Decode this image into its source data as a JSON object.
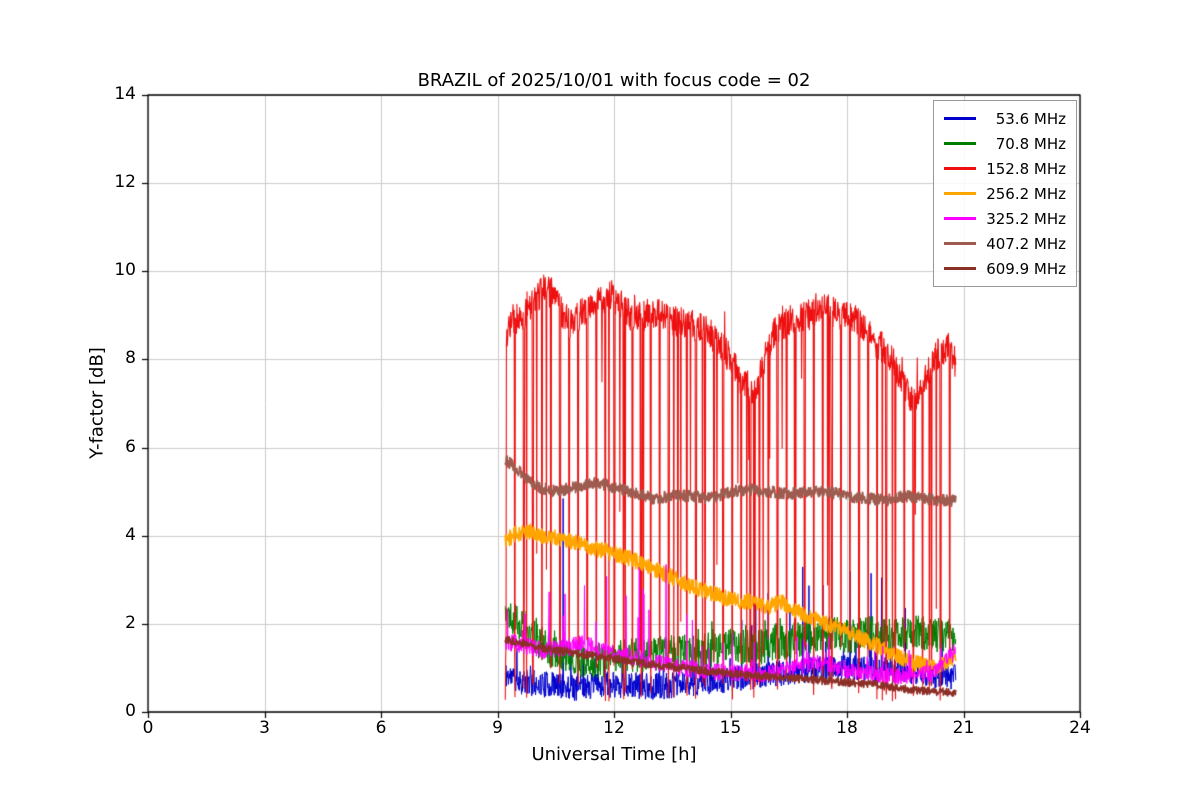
{
  "chart_data": {
    "type": "line",
    "title": "BRAZIL of 2025/10/01 with focus code = 02",
    "xlabel": "Universal Time [h]",
    "ylabel": "Y-factor [dB]",
    "xlim": [
      0,
      24
    ],
    "ylim": [
      0,
      14
    ],
    "xticks": [
      0,
      3,
      6,
      9,
      12,
      15,
      18,
      21,
      24
    ],
    "yticks": [
      0,
      2,
      4,
      6,
      8,
      10,
      12,
      14
    ],
    "grid": true,
    "grid_color": "#cccccc",
    "legend_position": "upper right",
    "t_range": [
      9.2,
      20.8
    ],
    "sample_step": 0.01,
    "series": [
      {
        "name": "53.6 MHz",
        "label": "  53.6 MHz",
        "color": "#0000cd",
        "linewidth": 1.0,
        "seed": 11,
        "noise": 0.3,
        "vmax": 13.9,
        "baseline": [
          [
            9.2,
            0.85
          ],
          [
            9.6,
            0.7
          ],
          [
            10.0,
            0.65
          ],
          [
            10.5,
            0.6
          ],
          [
            11.0,
            0.55
          ],
          [
            11.5,
            0.6
          ],
          [
            12.0,
            0.62
          ],
          [
            12.5,
            0.6
          ],
          [
            13.0,
            0.58
          ],
          [
            13.5,
            0.6
          ],
          [
            14.0,
            0.65
          ],
          [
            14.5,
            0.7
          ],
          [
            15.0,
            0.75
          ],
          [
            15.5,
            0.8
          ],
          [
            16.0,
            0.85
          ],
          [
            16.5,
            0.9
          ],
          [
            17.0,
            0.95
          ],
          [
            17.5,
            1.0
          ],
          [
            18.0,
            1.0
          ],
          [
            18.5,
            1.0
          ],
          [
            19.0,
            0.95
          ],
          [
            19.5,
            0.9
          ],
          [
            20.0,
            0.85
          ],
          [
            20.8,
            0.8
          ]
        ],
        "spikes": {
          "up_prob": 0.05,
          "up_env": [
            [
              9.2,
              1.0
            ],
            [
              10.2,
              1.2
            ],
            [
              10.4,
              4.6
            ],
            [
              10.8,
              4.6
            ],
            [
              11.0,
              1.0
            ],
            [
              15.0,
              1.2
            ],
            [
              15.8,
              2.0
            ],
            [
              16.5,
              2.4
            ],
            [
              17.5,
              2.6
            ],
            [
              18.5,
              2.6
            ],
            [
              19.5,
              2.6
            ],
            [
              20.3,
              2.3
            ],
            [
              20.8,
              2.0
            ]
          ]
        }
      },
      {
        "name": "70.8 MHz",
        "label": "  70.8 MHz",
        "color": "#007d00",
        "linewidth": 1.0,
        "seed": 22,
        "noise": 0.4,
        "vmax": 13.9,
        "baseline": [
          [
            9.2,
            2.3
          ],
          [
            9.5,
            2.1
          ],
          [
            9.8,
            1.8
          ],
          [
            10.2,
            1.5
          ],
          [
            10.6,
            1.3
          ],
          [
            11.0,
            1.2
          ],
          [
            11.5,
            1.15
          ],
          [
            12.0,
            1.2
          ],
          [
            12.5,
            1.3
          ],
          [
            13.0,
            1.3
          ],
          [
            13.5,
            1.4
          ],
          [
            14.0,
            1.35
          ],
          [
            14.5,
            1.4
          ],
          [
            15.0,
            1.5
          ],
          [
            15.5,
            1.45
          ],
          [
            16.0,
            1.5
          ],
          [
            16.5,
            1.6
          ],
          [
            17.0,
            1.7
          ],
          [
            17.5,
            1.8
          ],
          [
            18.0,
            1.7
          ],
          [
            18.5,
            1.8
          ],
          [
            19.0,
            1.7
          ],
          [
            19.5,
            1.8
          ],
          [
            20.0,
            1.8
          ],
          [
            20.4,
            1.75
          ],
          [
            20.8,
            1.6
          ]
        ],
        "spikes": {
          "up_prob": 0.03,
          "up_env": [
            [
              9.2,
              1.4
            ],
            [
              10.0,
              1.1
            ],
            [
              12.0,
              0.9
            ],
            [
              14.0,
              0.8
            ],
            [
              16.0,
              0.6
            ],
            [
              20.8,
              0.5
            ]
          ]
        }
      },
      {
        "name": "152.8 MHz",
        "label": "152.8 MHz",
        "color": "#ee1010",
        "linewidth": 1.1,
        "seed": 33,
        "noise": 0.35,
        "vmax": 10.35,
        "baseline": [
          [
            9.2,
            8.5
          ],
          [
            9.4,
            8.9
          ],
          [
            9.7,
            9.0
          ],
          [
            10.0,
            9.4
          ],
          [
            10.2,
            9.6
          ],
          [
            10.4,
            9.5
          ],
          [
            10.7,
            9.0
          ],
          [
            10.9,
            8.8
          ],
          [
            11.2,
            9.1
          ],
          [
            11.6,
            9.3
          ],
          [
            11.9,
            9.5
          ],
          [
            12.2,
            9.2
          ],
          [
            12.5,
            8.9
          ],
          [
            12.8,
            9.0
          ],
          [
            13.1,
            9.1
          ],
          [
            13.5,
            8.9
          ],
          [
            13.9,
            8.8
          ],
          [
            14.3,
            8.7
          ],
          [
            14.7,
            8.4
          ],
          [
            15.0,
            8.0
          ],
          [
            15.3,
            7.5
          ],
          [
            15.6,
            7.3
          ],
          [
            15.8,
            7.8
          ],
          [
            16.1,
            8.6
          ],
          [
            16.5,
            8.9
          ],
          [
            17.0,
            9.0
          ],
          [
            17.4,
            9.2
          ],
          [
            17.8,
            9.0
          ],
          [
            18.2,
            8.9
          ],
          [
            18.6,
            8.5
          ],
          [
            19.0,
            8.2
          ],
          [
            19.4,
            7.6
          ],
          [
            19.7,
            7.0
          ],
          [
            20.0,
            7.5
          ],
          [
            20.3,
            8.1
          ],
          [
            20.6,
            8.3
          ],
          [
            20.8,
            7.9
          ]
        ],
        "spikes": {
          "down_prob": 0.035,
          "down_floor": 0.25,
          "up_prob": 0.012,
          "up_env": [
            [
              9.2,
              0.9
            ],
            [
              20.8,
              0.9
            ]
          ],
          "period": 0.2333,
          "period_width": 0.022
        }
      },
      {
        "name": "256.2 MHz",
        "label": "256.2 MHz",
        "color": "#ffa500",
        "linewidth": 1.6,
        "seed": 44,
        "noise": 0.18,
        "vmax": 13.9,
        "baseline": [
          [
            9.2,
            3.9
          ],
          [
            9.5,
            4.05
          ],
          [
            9.8,
            4.1
          ],
          [
            10.1,
            4.0
          ],
          [
            10.5,
            3.95
          ],
          [
            11.0,
            3.85
          ],
          [
            11.5,
            3.7
          ],
          [
            12.0,
            3.6
          ],
          [
            12.5,
            3.45
          ],
          [
            13.0,
            3.25
          ],
          [
            13.5,
            3.05
          ],
          [
            14.0,
            2.85
          ],
          [
            14.5,
            2.7
          ],
          [
            15.0,
            2.55
          ],
          [
            15.5,
            2.5
          ],
          [
            16.0,
            2.4
          ],
          [
            16.3,
            2.5
          ],
          [
            16.8,
            2.25
          ],
          [
            17.3,
            2.05
          ],
          [
            17.8,
            1.9
          ],
          [
            18.3,
            1.7
          ],
          [
            18.8,
            1.5
          ],
          [
            19.3,
            1.25
          ],
          [
            19.8,
            1.1
          ],
          [
            20.3,
            1.0
          ],
          [
            20.6,
            1.15
          ],
          [
            20.8,
            1.3
          ]
        ],
        "spikes": null
      },
      {
        "name": "325.2 MHz",
        "label": "325.2 MHz",
        "color": "#ff00ff",
        "linewidth": 1.0,
        "seed": 55,
        "noise": 0.2,
        "vmax": 13.9,
        "baseline": [
          [
            9.2,
            1.6
          ],
          [
            9.7,
            1.5
          ],
          [
            10.2,
            1.4
          ],
          [
            10.7,
            1.45
          ],
          [
            11.2,
            1.55
          ],
          [
            11.7,
            1.4
          ],
          [
            12.2,
            1.3
          ],
          [
            12.7,
            1.2
          ],
          [
            13.2,
            1.1
          ],
          [
            13.7,
            1.0
          ],
          [
            14.2,
            0.95
          ],
          [
            14.7,
            0.9
          ],
          [
            15.2,
            0.9
          ],
          [
            15.7,
            0.85
          ],
          [
            16.2,
            0.9
          ],
          [
            16.7,
            1.0
          ],
          [
            17.2,
            1.1
          ],
          [
            17.7,
            1.0
          ],
          [
            18.2,
            0.9
          ],
          [
            18.7,
            0.85
          ],
          [
            19.2,
            0.8
          ],
          [
            19.7,
            0.8
          ],
          [
            20.2,
            0.9
          ],
          [
            20.5,
            1.1
          ],
          [
            20.8,
            1.4
          ]
        ],
        "spikes": {
          "up_prob": 0.05,
          "up_env": [
            [
              9.2,
              1.3
            ],
            [
              10.8,
              1.6
            ],
            [
              11.1,
              2.8
            ],
            [
              11.5,
              2.8
            ],
            [
              12.0,
              2.0
            ],
            [
              12.7,
              2.3
            ],
            [
              13.5,
              2.3
            ],
            [
              14.0,
              1.2
            ],
            [
              15.0,
              0.9
            ],
            [
              16.0,
              0.8
            ],
            [
              18.0,
              0.7
            ],
            [
              20.8,
              0.6
            ]
          ]
        }
      },
      {
        "name": "407.2 MHz",
        "label": "407.2 MHz",
        "color": "#9e5c50",
        "linewidth": 1.8,
        "seed": 66,
        "noise": 0.13,
        "vmax": 13.9,
        "baseline": [
          [
            9.2,
            5.75
          ],
          [
            9.5,
            5.5
          ],
          [
            9.8,
            5.25
          ],
          [
            10.1,
            5.1
          ],
          [
            10.5,
            5.0
          ],
          [
            11.0,
            5.1
          ],
          [
            11.4,
            5.2
          ],
          [
            11.8,
            5.15
          ],
          [
            12.2,
            5.05
          ],
          [
            12.6,
            4.95
          ],
          [
            13.0,
            4.85
          ],
          [
            13.5,
            4.9
          ],
          [
            14.0,
            4.9
          ],
          [
            14.5,
            4.85
          ],
          [
            15.0,
            5.0
          ],
          [
            15.5,
            5.05
          ],
          [
            16.0,
            5.0
          ],
          [
            16.5,
            4.95
          ],
          [
            17.0,
            5.0
          ],
          [
            17.5,
            5.0
          ],
          [
            18.0,
            4.9
          ],
          [
            18.5,
            4.85
          ],
          [
            19.0,
            4.8
          ],
          [
            19.5,
            4.9
          ],
          [
            20.0,
            4.85
          ],
          [
            20.5,
            4.8
          ],
          [
            20.8,
            4.8
          ]
        ],
        "spikes": null
      },
      {
        "name": "609.9 MHz",
        "label": "609.9 MHz",
        "color": "#8c2f26",
        "linewidth": 1.6,
        "seed": 77,
        "noise": 0.09,
        "vmax": 13.9,
        "baseline": [
          [
            9.2,
            1.65
          ],
          [
            9.7,
            1.55
          ],
          [
            10.2,
            1.45
          ],
          [
            10.7,
            1.38
          ],
          [
            11.2,
            1.3
          ],
          [
            11.7,
            1.25
          ],
          [
            12.2,
            1.18
          ],
          [
            12.7,
            1.1
          ],
          [
            13.2,
            1.05
          ],
          [
            13.7,
            1.0
          ],
          [
            14.2,
            0.95
          ],
          [
            14.7,
            0.9
          ],
          [
            15.2,
            0.85
          ],
          [
            15.7,
            0.82
          ],
          [
            16.2,
            0.8
          ],
          [
            16.7,
            0.76
          ],
          [
            17.2,
            0.72
          ],
          [
            17.7,
            0.7
          ],
          [
            18.2,
            0.66
          ],
          [
            18.7,
            0.62
          ],
          [
            19.2,
            0.56
          ],
          [
            19.7,
            0.5
          ],
          [
            20.2,
            0.46
          ],
          [
            20.8,
            0.45
          ]
        ],
        "spikes": null
      }
    ]
  }
}
